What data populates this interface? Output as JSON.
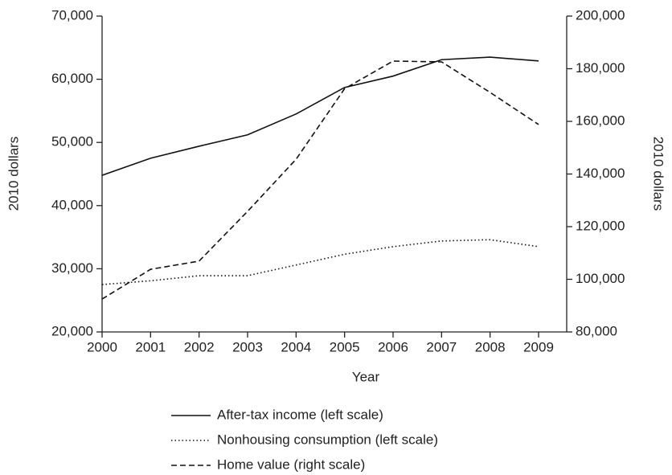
{
  "chart_data": {
    "type": "line",
    "x_label": "Year",
    "y_label": "2010 dollars",
    "y2_label": "2010 dollars",
    "x": [
      2000,
      2001,
      2002,
      2003,
      2004,
      2005,
      2006,
      2007,
      2008,
      2009
    ],
    "xlim": [
      2000,
      2009
    ],
    "xticks": [
      2000,
      2001,
      2002,
      2003,
      2004,
      2005,
      2006,
      2007,
      2008,
      2009
    ],
    "ylim": [
      20000,
      70000
    ],
    "yticks": [
      {
        "value": 20000,
        "label": "20,000"
      },
      {
        "value": 30000,
        "label": "30,000"
      },
      {
        "value": 40000,
        "label": "40,000"
      },
      {
        "value": 50000,
        "label": "50,000"
      },
      {
        "value": 60000,
        "label": "60,000"
      },
      {
        "value": 70000,
        "label": "70,000"
      }
    ],
    "y2lim": [
      80000,
      200000
    ],
    "y2ticks": [
      {
        "value": 80000,
        "label": "80,000"
      },
      {
        "value": 100000,
        "label": "100,000"
      },
      {
        "value": 120000,
        "label": "120,000"
      },
      {
        "value": 140000,
        "label": "140,000"
      },
      {
        "value": 160000,
        "label": "160,000"
      },
      {
        "value": 180000,
        "label": "180,000"
      },
      {
        "value": 200000,
        "label": "200,000"
      }
    ],
    "grid": false,
    "legend": "bottom",
    "series": [
      {
        "name": "After-tax income (left scale)",
        "color": "#111111",
        "dash": "solid",
        "values": [
          44800,
          47500,
          49400,
          51200,
          54500,
          58700,
          60500,
          63100,
          63500,
          62900
        ]
      },
      {
        "name": "Nonhousing consumption (left scale)",
        "color": "#111111",
        "dash": "dotted",
        "values": [
          27500,
          28100,
          28900,
          28900,
          30600,
          32300,
          33500,
          34400,
          34600,
          33500
        ]
      },
      {
        "name": "Home value (right scale)",
        "color": "#111111",
        "dash": "dashed",
        "axis": "y2",
        "values": [
          92500,
          103800,
          106900,
          125800,
          145600,
          172400,
          182900,
          182600,
          171000,
          158800
        ]
      }
    ]
  }
}
